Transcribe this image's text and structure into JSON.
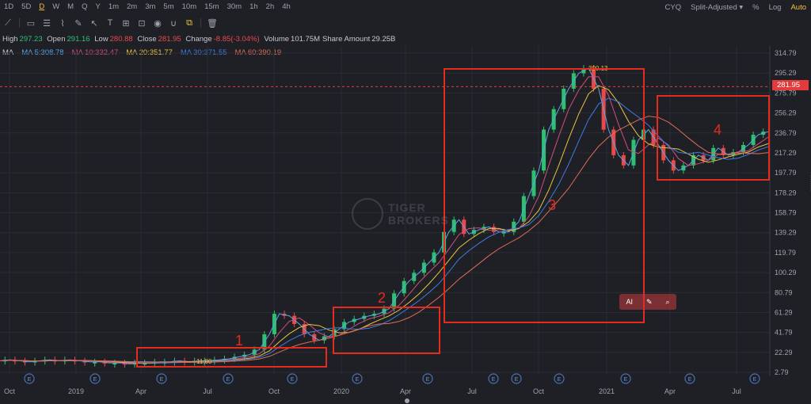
{
  "toolbar": {
    "timeframes": [
      "1D",
      "5D",
      "D",
      "W",
      "M",
      "Q",
      "Y",
      "1m",
      "2m",
      "3m",
      "5m",
      "10m",
      "15m",
      "30m",
      "1h",
      "2h",
      "4h"
    ],
    "active": "D",
    "right": {
      "cyq": "CYQ",
      "adjust": "Split-Adjusted ▾",
      "percent": "%",
      "log": "Log",
      "auto": "Auto"
    }
  },
  "drawing_tools": [
    "line-tool-icon",
    "rect-tool-icon",
    "fib-tool-icon",
    "pattern-tool-icon",
    "cursor-tool-icon",
    "text-tool-icon",
    "indicator-tool-icon",
    "lock-icon",
    "eye-icon",
    "magnet-icon",
    "link-icon",
    "trash-icon"
  ],
  "quote": {
    "high_label": "High",
    "high": "297.23",
    "open_label": "Open",
    "open": "291.16",
    "low_label": "Low",
    "low": "280.88",
    "close_label": "Close",
    "close": "281.95",
    "change_label": "Change",
    "change": "-8.85(-3.04%)",
    "volume_label": "Volume",
    "volume": "101.75M",
    "amount_label": "Share Amount",
    "amount": "29.25B"
  },
  "ma": {
    "label": "MA",
    "items": [
      {
        "text": "MA 5:308.78",
        "color": "#5aa7e6"
      },
      {
        "text": "MA 10:332.47",
        "color": "#d14d7c"
      },
      {
        "text": "MA 20:351.77",
        "color": "#e8c440"
      },
      {
        "text": "MA 30:371.55",
        "color": "#3f7be0"
      },
      {
        "text": "MA 60:390.19",
        "color": "#e06b55"
      }
    ]
  },
  "current_price": "281.95",
  "ai_buttons": {
    "ai": "AI",
    "magic": "✎",
    "search": "⌕"
  },
  "watermark": {
    "line1": "TIGER",
    "line2": "BROKERS"
  },
  "chart_data": {
    "type": "line",
    "y_ticks": [
      "314.79",
      "295.29",
      "275.79",
      "256.29",
      "236.79",
      "217.29",
      "197.79",
      "178.29",
      "158.79",
      "139.29",
      "119.79",
      "100.29",
      "80.79",
      "61.29",
      "41.79",
      "22.29",
      "2.79"
    ],
    "x_ticks": [
      "Oct",
      "2019",
      "Apr",
      "Jul",
      "Oct",
      "2020",
      "Apr",
      "Jul",
      "Oct",
      "2021",
      "Apr",
      "Jul"
    ],
    "annotations": [
      "11.80",
      "300.13"
    ],
    "box_labels": [
      "1",
      "2",
      "3",
      "4"
    ],
    "series": [
      {
        "values": [
          14,
          15,
          14,
          13,
          14,
          15,
          14,
          15,
          14,
          13,
          13,
          12,
          12,
          11,
          12,
          12,
          13,
          13,
          14,
          13,
          14,
          14,
          15,
          16,
          18,
          20,
          25,
          40,
          60,
          58,
          50,
          40,
          34,
          38,
          45,
          52,
          55,
          58,
          60,
          65,
          80,
          92,
          100,
          110,
          120,
          140,
          152,
          138,
          142,
          145,
          140,
          140,
          150,
          175,
          200,
          240,
          260,
          280,
          295,
          300,
          280,
          240,
          215,
          205,
          230,
          240,
          225,
          210,
          200,
          205,
          215,
          210,
          222,
          215,
          218,
          225,
          235,
          238
        ]
      }
    ]
  }
}
